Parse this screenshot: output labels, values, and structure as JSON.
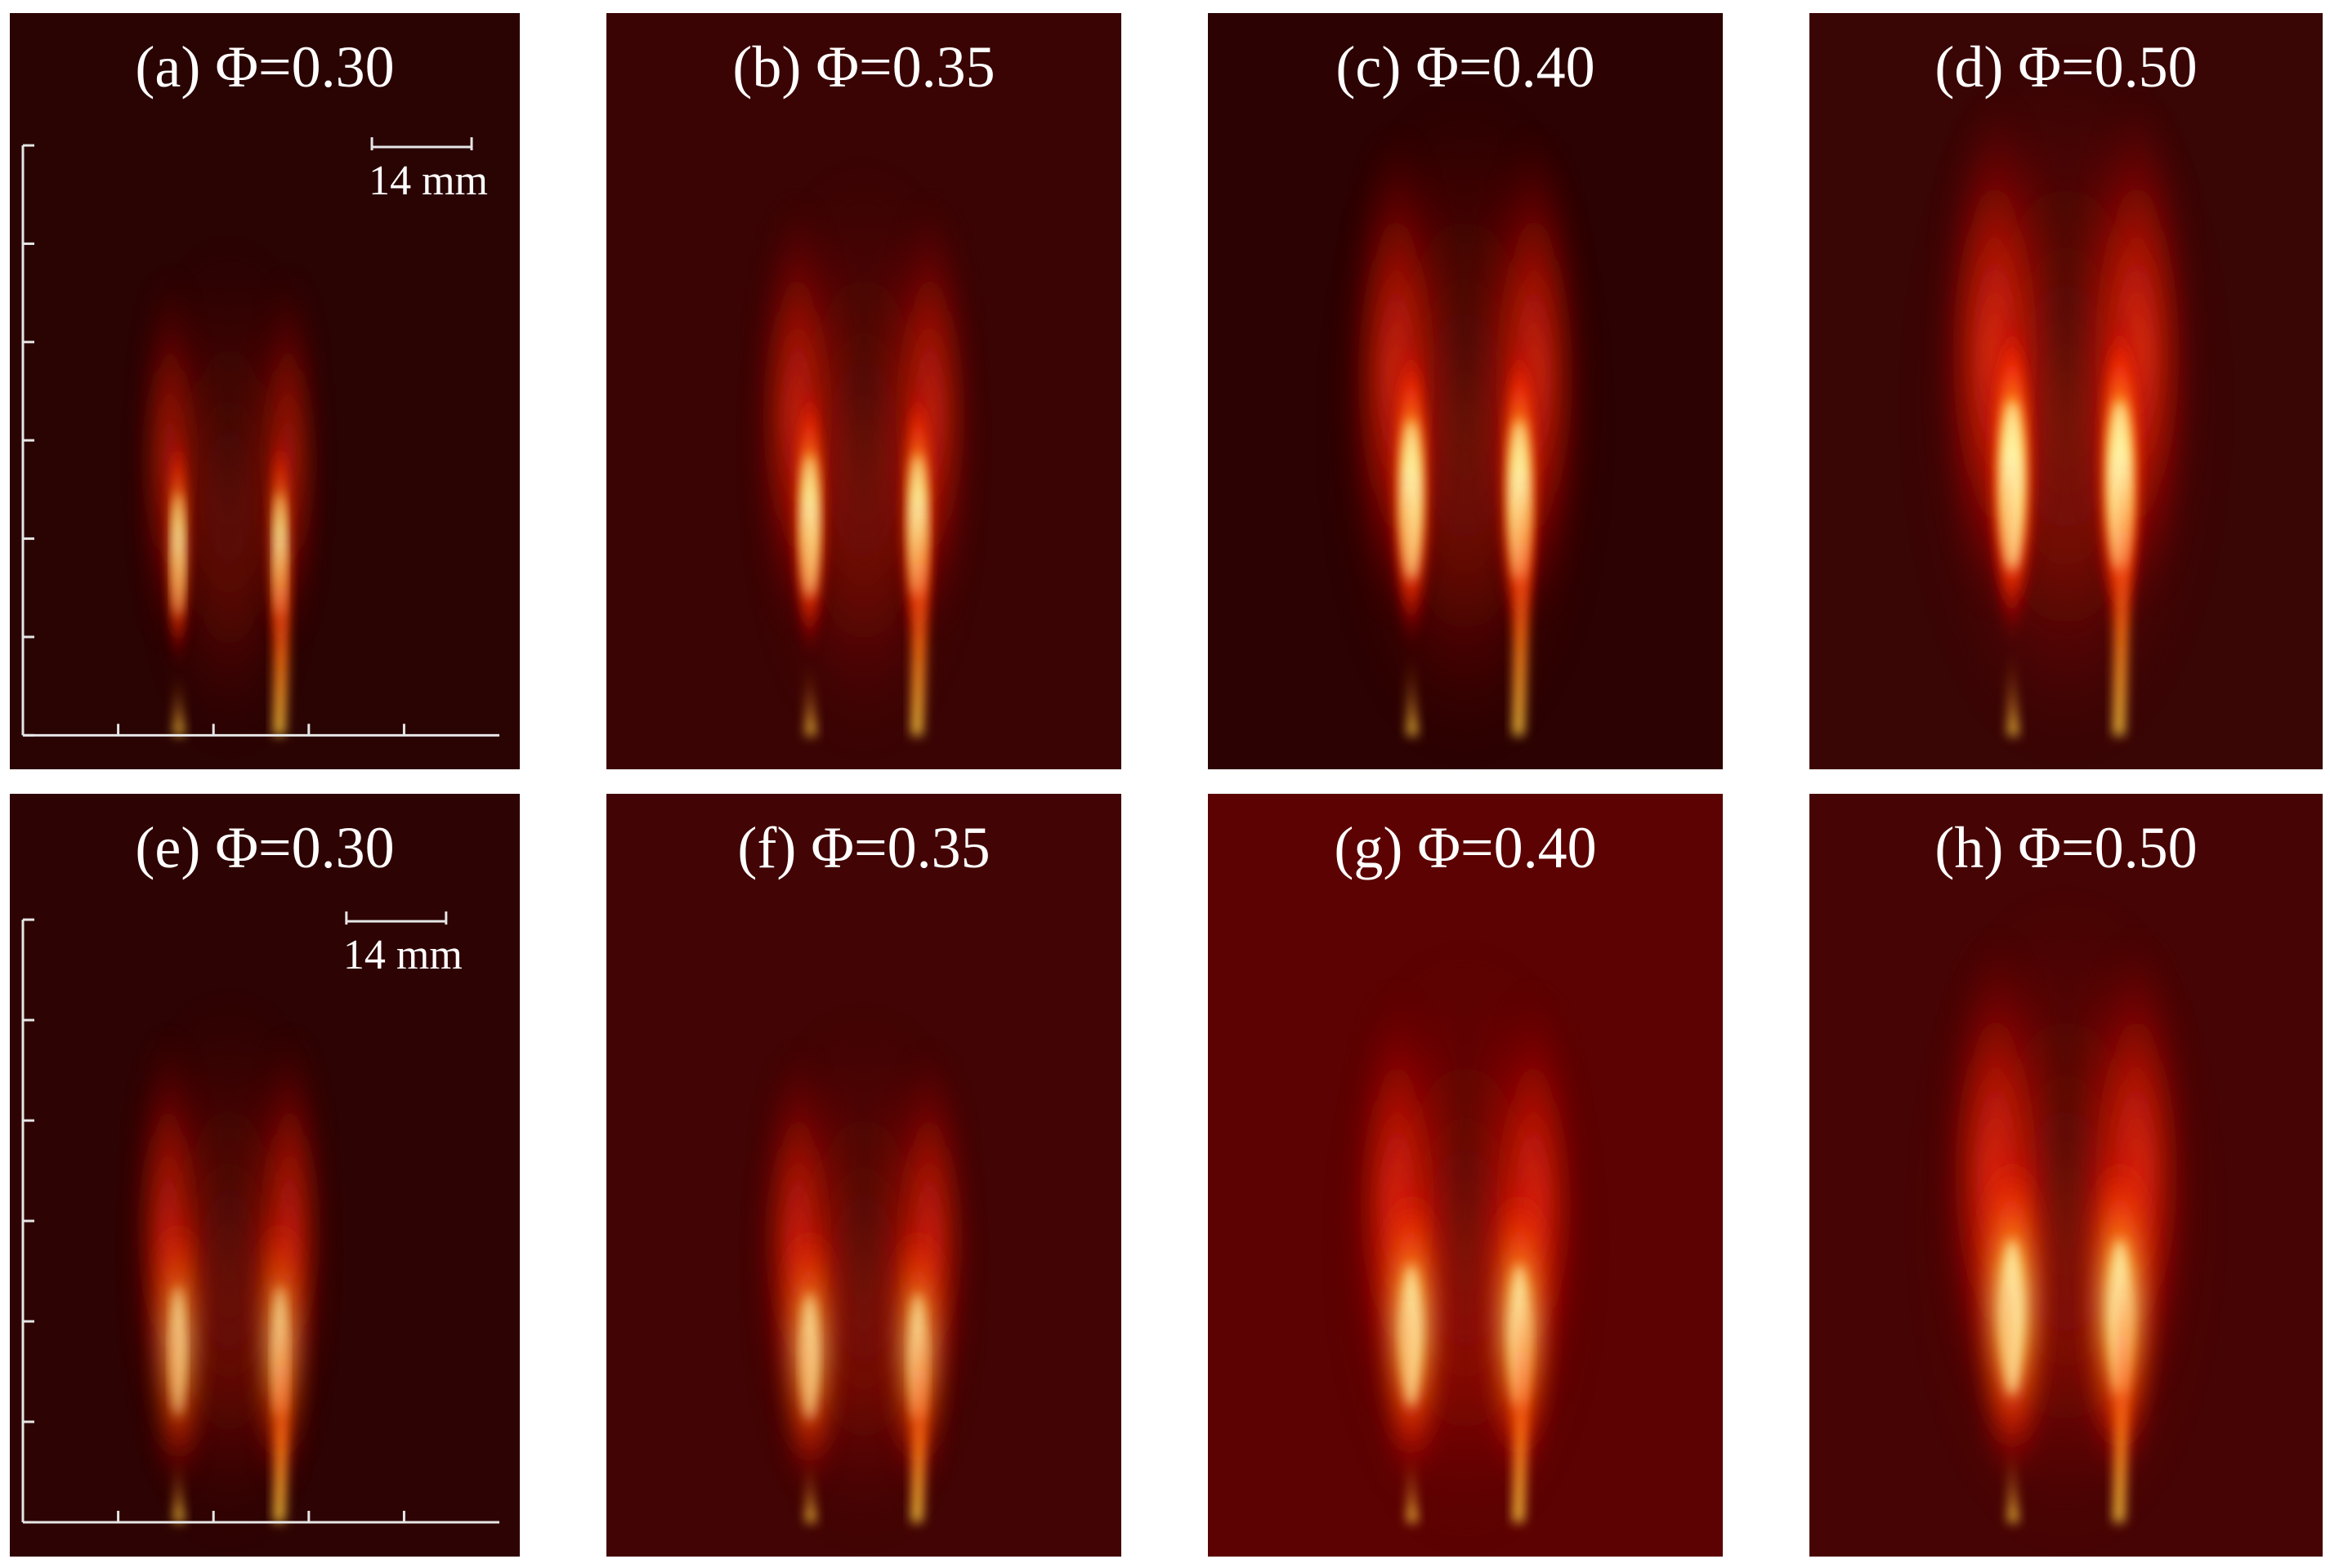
{
  "figure": {
    "panels": [
      {
        "title": "(a) Φ=0.30",
        "row": 0,
        "background": "#2a0303",
        "has_axes": true,
        "scale_label": "14 mm",
        "flame_height": 0.63,
        "flame_spread": 0.2,
        "glow": 0.85,
        "style": "sharp"
      },
      {
        "title": "(b) Φ=0.35",
        "row": 0,
        "background": "#3a0404",
        "has_axes": false,
        "scale_label": "",
        "flame_height": 0.73,
        "flame_spread": 0.3,
        "glow": 0.9,
        "style": "sharp"
      },
      {
        "title": "(c) Φ=0.40",
        "row": 0,
        "background": "#2c0202",
        "has_axes": false,
        "scale_label": "",
        "flame_height": 0.82,
        "flame_spread": 0.36,
        "glow": 0.95,
        "style": "sharp"
      },
      {
        "title": "(d) Φ=0.50",
        "row": 0,
        "background": "#3a0505",
        "has_axes": false,
        "scale_label": "",
        "flame_height": 0.87,
        "flame_spread": 0.42,
        "glow": 1.0,
        "style": "sharp"
      },
      {
        "title": "(e) Φ=0.30",
        "row": 1,
        "background": "#2e0303",
        "has_axes": true,
        "scale_label": "14 mm",
        "flame_height": 0.66,
        "flame_spread": 0.24,
        "glow": 0.95,
        "style": "soft"
      },
      {
        "title": "(f) Φ=0.35",
        "row": 1,
        "background": "#420404",
        "has_axes": false,
        "scale_label": "",
        "flame_height": 0.64,
        "flame_spread": 0.28,
        "glow": 0.95,
        "style": "soft"
      },
      {
        "title": "(g) Φ=0.40",
        "row": 1,
        "background": "#5c0202",
        "has_axes": false,
        "scale_label": "",
        "flame_height": 0.72,
        "flame_spread": 0.34,
        "glow": 1.0,
        "style": "soft"
      },
      {
        "title": "(h) Φ=0.50",
        "row": 1,
        "background": "#470404",
        "has_axes": false,
        "scale_label": "",
        "flame_height": 0.79,
        "flame_spread": 0.4,
        "glow": 1.0,
        "style": "soft"
      }
    ]
  }
}
